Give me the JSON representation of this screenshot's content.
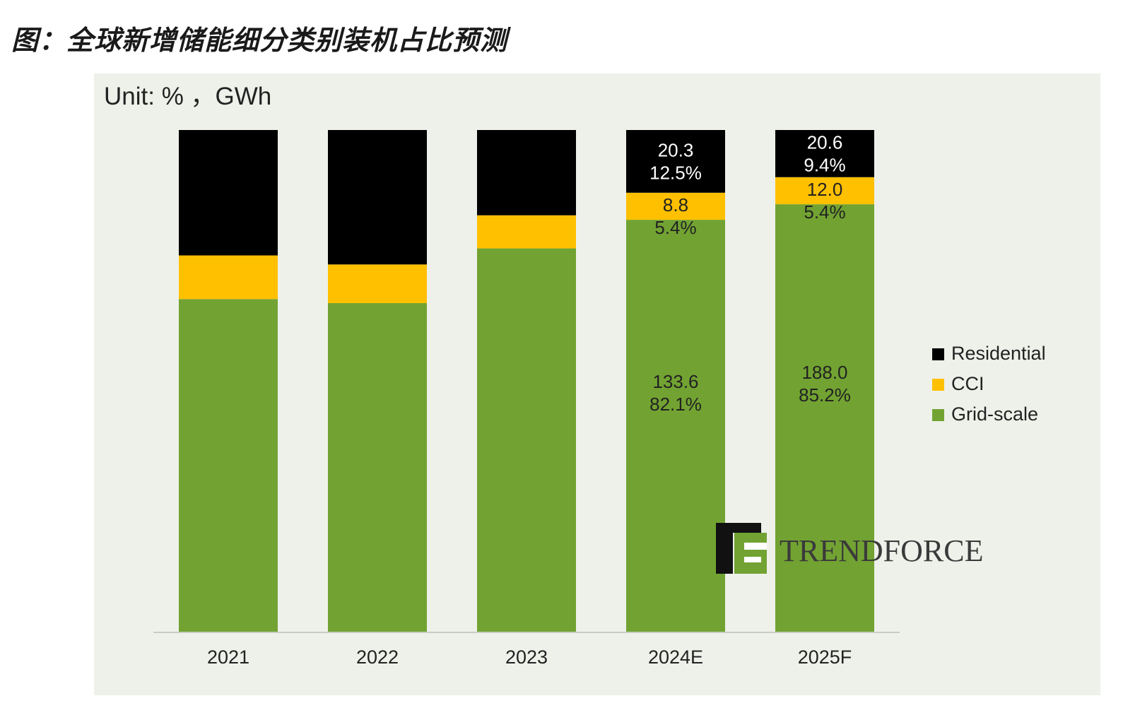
{
  "figure": {
    "title": "图：全球新增储能细分类别装机占比预测"
  },
  "colors": {
    "grid_scale": "#72a332",
    "cci": "#ffc000",
    "residential": "#000000",
    "panel_bg": "#eef1ea",
    "axis": "#c8cdc4",
    "text": "#222222"
  },
  "watermark": {
    "text": "TRENDFORCE"
  },
  "chart_data": {
    "type": "bar",
    "stacked": true,
    "normalized_percent": true,
    "unit_label": "Unit: % ，GWh",
    "categories": [
      "2021",
      "2022",
      "2023",
      "2024E",
      "2025F"
    ],
    "series": [
      {
        "name": "Grid-scale",
        "color": "#72a332",
        "values": [
          66.3,
          65.5,
          76.4,
          82.1,
          85.2
        ],
        "labels": [
          "",
          "",
          "",
          "133.6\n82.1%",
          "188.0\n85.2%"
        ]
      },
      {
        "name": "CCI",
        "color": "#ffc000",
        "values": [
          8.7,
          7.7,
          6.6,
          5.4,
          5.4
        ],
        "labels": [
          "",
          "",
          "",
          "8.8\n5.4%",
          "12.0\n5.4%"
        ]
      },
      {
        "name": "Residential",
        "color": "#000000",
        "values": [
          25.0,
          26.8,
          17.0,
          12.5,
          9.4
        ],
        "labels": [
          "",
          "",
          "",
          "20.3\n12.5%",
          "20.6\n9.4%"
        ]
      }
    ],
    "ylim": [
      0,
      100
    ],
    "grid": false,
    "legend": {
      "position": "right",
      "order": [
        "Residential",
        "CCI",
        "Grid-scale"
      ]
    }
  }
}
